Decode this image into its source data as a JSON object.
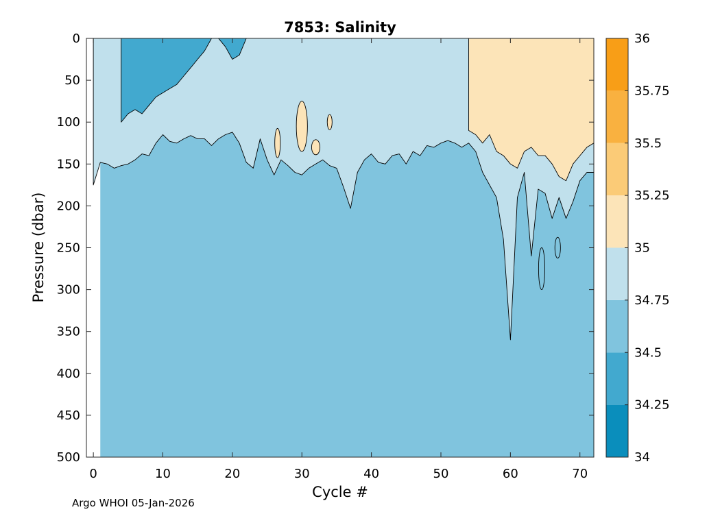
{
  "chart_data": {
    "type": "filled-contour",
    "title": "7853:  Salinity",
    "xlabel": "Cycle #",
    "ylabel": "Pressure (dbar)",
    "xlim": [
      -1,
      72
    ],
    "ylim": [
      0,
      500
    ],
    "y_reversed": true,
    "x_ticks": [
      0,
      10,
      20,
      30,
      40,
      50,
      60,
      70
    ],
    "y_ticks": [
      0,
      50,
      100,
      150,
      200,
      250,
      300,
      350,
      400,
      450,
      500
    ],
    "x_tick_labels": [
      "0",
      "10",
      "20",
      "30",
      "40",
      "50",
      "60",
      "70"
    ],
    "y_tick_labels": [
      "0",
      "50",
      "100",
      "150",
      "200",
      "250",
      "300",
      "350",
      "400",
      "450",
      "500"
    ],
    "colorbar": {
      "levels": [
        34,
        34.25,
        34.5,
        34.75,
        35,
        35.25,
        35.5,
        35.75,
        36
      ],
      "tick_labels": [
        "34",
        "34.25",
        "34.5",
        "34.75",
        "35",
        "35.25",
        "35.5",
        "35.75",
        "36"
      ],
      "colors": [
        "#0a8ebc",
        "#42a9cf",
        "#80c4de",
        "#c0e0ec",
        "#fce4b8",
        "#fbcb77",
        "#f9b140",
        "#f89e17"
      ]
    },
    "background_band": [
      34.5,
      34.75
    ],
    "data_start_cycle": 1,
    "regions": [
      {
        "band": [
          34.75,
          35.0
        ],
        "kind": "profile",
        "cycles": [
          0,
          1,
          2,
          3,
          4,
          5,
          6,
          7,
          8,
          9,
          10,
          11,
          12,
          13,
          14,
          15,
          16,
          17,
          18,
          19,
          20,
          21,
          22,
          23,
          24,
          25,
          26,
          27,
          28,
          29,
          30,
          31,
          32,
          33,
          34,
          35,
          36,
          37,
          38,
          39,
          40,
          41,
          42,
          43,
          44,
          45,
          46,
          47,
          48,
          49,
          50,
          51,
          52,
          53,
          54,
          55,
          56,
          57,
          58,
          59,
          60,
          61,
          62,
          63,
          64,
          65,
          66,
          67,
          68,
          69,
          70,
          71,
          72
        ],
        "bottom_dbar": [
          175,
          148,
          150,
          155,
          152,
          150,
          145,
          138,
          140,
          125,
          115,
          123,
          125,
          120,
          116,
          120,
          120,
          128,
          120,
          115,
          112,
          125,
          148,
          155,
          120,
          145,
          163,
          145,
          152,
          160,
          163,
          155,
          150,
          145,
          152,
          155,
          178,
          203,
          160,
          145,
          138,
          148,
          150,
          140,
          138,
          150,
          135,
          140,
          128,
          130,
          125,
          122,
          125,
          130,
          125,
          135,
          160,
          175,
          190,
          240,
          360,
          190,
          160,
          260,
          180,
          185,
          215,
          190,
          215,
          195,
          170,
          160,
          160
        ]
      },
      {
        "band": [
          34.25,
          34.5
        ],
        "kind": "profile",
        "cycles": [
          4,
          5,
          6,
          7,
          8,
          9,
          10,
          11,
          12,
          13,
          14,
          15,
          16,
          17,
          18,
          19,
          20,
          21,
          22
        ],
        "bottom_dbar": [
          100,
          90,
          85,
          90,
          80,
          70,
          65,
          60,
          55,
          45,
          35,
          25,
          15,
          0,
          0,
          10,
          25,
          20,
          0
        ]
      },
      {
        "band": [
          35.0,
          35.25
        ],
        "kind": "profile",
        "cycles": [
          54,
          55,
          56,
          57,
          58,
          59,
          60,
          61,
          62,
          63,
          64,
          65,
          66,
          67,
          68,
          69,
          70,
          71,
          72
        ],
        "bottom_dbar": [
          110,
          115,
          125,
          115,
          135,
          140,
          150,
          155,
          135,
          130,
          140,
          140,
          150,
          165,
          170,
          150,
          140,
          130,
          125
        ]
      },
      {
        "band": [
          35.0,
          35.25
        ],
        "kind": "blob",
        "cycle": 30,
        "pressure_dbar": 105,
        "width_cycles": 1.6,
        "height_dbar": 60
      },
      {
        "band": [
          35.0,
          35.25
        ],
        "kind": "blob",
        "cycle": 32,
        "pressure_dbar": 130,
        "width_cycles": 1.2,
        "height_dbar": 18
      },
      {
        "band": [
          35.0,
          35.25
        ],
        "kind": "blob",
        "cycle": 26.5,
        "pressure_dbar": 125,
        "width_cycles": 0.8,
        "height_dbar": 35
      },
      {
        "band": [
          35.0,
          35.25
        ],
        "kind": "blob",
        "cycle": 34,
        "pressure_dbar": 100,
        "width_cycles": 0.7,
        "height_dbar": 18
      },
      {
        "band": [
          34.5,
          34.75
        ],
        "kind": "blob",
        "cycle": 64.5,
        "pressure_dbar": 275,
        "width_cycles": 0.9,
        "height_dbar": 50
      },
      {
        "band": [
          34.5,
          34.75
        ],
        "kind": "blob",
        "cycle": 66.8,
        "pressure_dbar": 250,
        "width_cycles": 0.8,
        "height_dbar": 25
      }
    ]
  },
  "footer": {
    "text": "Argo WHOI 05-Jan-2026"
  }
}
